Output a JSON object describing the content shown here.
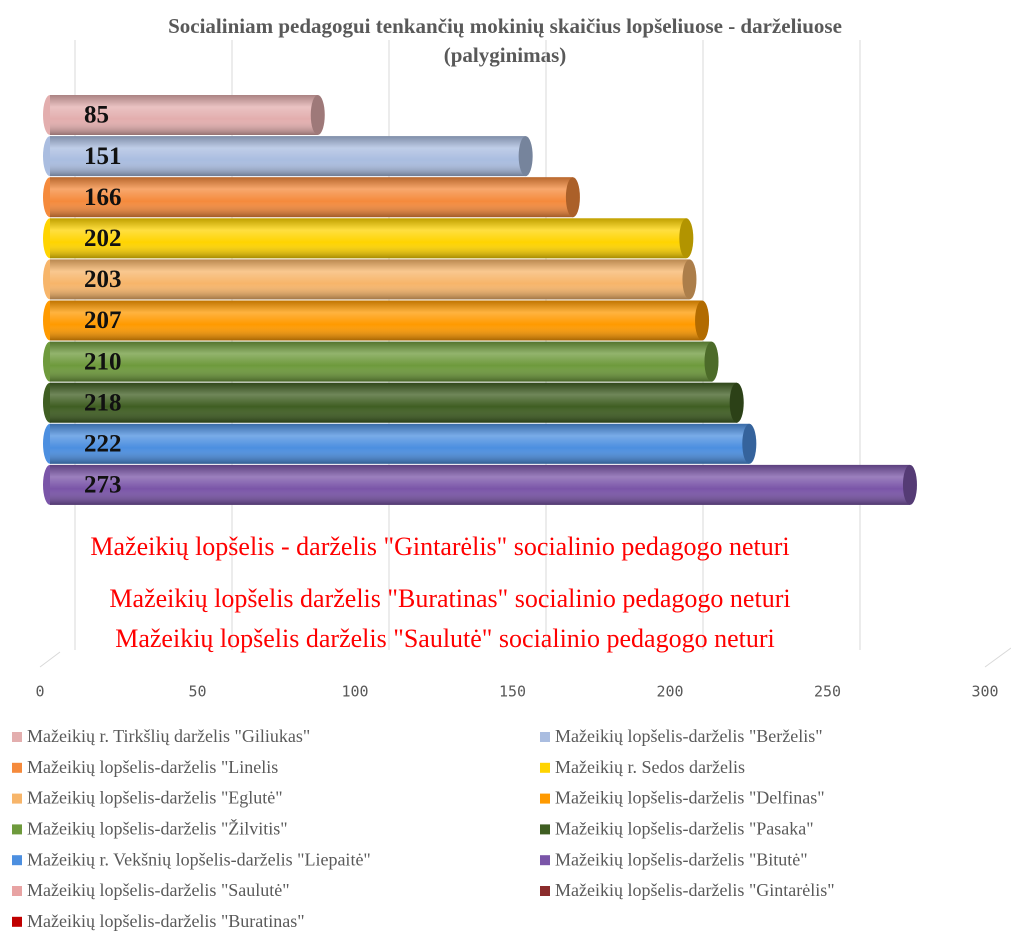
{
  "chart_data": {
    "type": "bar",
    "orientation": "horizontal",
    "title": "Socialiniam pedagogui tenkančių mokinių skaičius lopšeliuose - darželiuose",
    "subtitle": "(palyginimas)",
    "series": [
      {
        "name": "Mažeikių r. Tirkšlių darželis \"Giliukas\"",
        "color": "#e3aeae",
        "values": [
          85
        ]
      },
      {
        "name": "Mažeikių lopšelis-darželis \"Berželis\"",
        "color": "#aabde0",
        "values": [
          151
        ]
      },
      {
        "name": "Mažeikių lopšelis-darželis \"Linelis",
        "color": "#f58a3c",
        "values": [
          166
        ]
      },
      {
        "name": "Mažeikių r. Sedos darželis",
        "color": "#ffd400",
        "values": [
          202
        ]
      },
      {
        "name": "Mažeikių lopšelis-darželis \"Eglutė\"",
        "color": "#f7b56a",
        "values": [
          203
        ]
      },
      {
        "name": "Mažeikių lopšelis-darželis \"Delfinas\"",
        "color": "#ff9a00",
        "values": [
          207
        ]
      },
      {
        "name": "Mažeikių lopšelis-darželis \"Žilvitis\"",
        "color": "#6e9a3c",
        "values": [
          210
        ]
      },
      {
        "name": "Mažeikių lopšelis-darželis \"Pasaka\"",
        "color": "#3f5e22",
        "values": [
          218
        ]
      },
      {
        "name": "Mažeikių r. Vekšnių lopšelis-darželis \"Liepaitė\"",
        "color": "#4c8fe0",
        "values": [
          222
        ]
      },
      {
        "name": "Mažeikių lopšelis-darželis \"Bitutė\"",
        "color": "#7a55a8",
        "values": [
          273
        ]
      },
      {
        "name": "Mažeikių lopšelis-darželis \"Saulutė\"",
        "color": "#e8a3a3",
        "values": [
          null
        ]
      },
      {
        "name": "Mažeikių lopšelis-darželis \"Gintarėlis\"",
        "color": "#8b2c2c",
        "values": [
          null
        ]
      },
      {
        "name": "Mažeikių lopšelis-darželis \"Buratinas\"",
        "color": "#c00000",
        "values": [
          null
        ]
      }
    ],
    "xlim": [
      0,
      300
    ],
    "xticks": [
      0,
      50,
      100,
      150,
      200,
      250,
      300
    ],
    "grid": true,
    "annotations": [
      "Mažeikių lopšelis - darželis \"Gintarėlis\" socialinio pedagogo neturi",
      "Mažeikių lopšelis darželis \"Buratinas\" socialinio pedagogo neturi",
      "Mažeikių lopšelis darželis \"Saulutė\" socialinio pedagogo neturi"
    ],
    "legend": "bottom"
  }
}
